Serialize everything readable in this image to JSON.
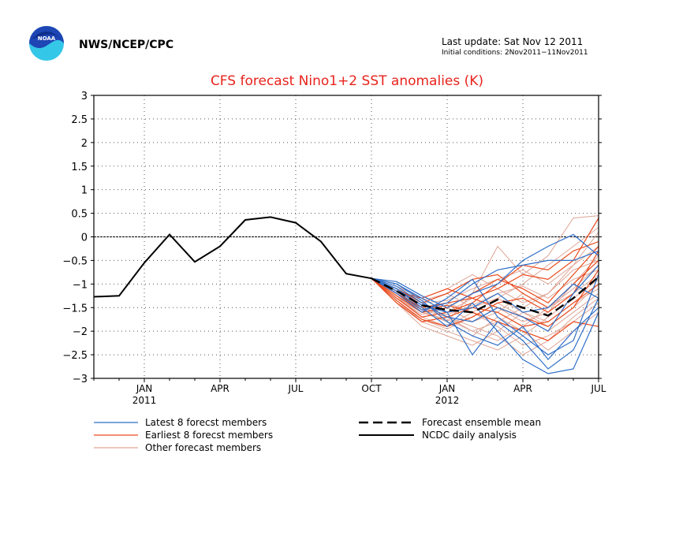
{
  "header": {
    "agency": "NWS/NCEP/CPC",
    "logo_text": "NOAA",
    "last_update": "Last update: Sat Nov 12 2011",
    "initial_conditions": "Initial conditions: 2Nov2011−11Nov2011"
  },
  "colors": {
    "title": "#e8231c",
    "latest": "#2f6fc8",
    "earliest": "#ea4a1c",
    "other": "#dfa596",
    "analysis": "#000000",
    "logo_blue": "#1e46b4",
    "logo_cyan": "#35c7e8"
  },
  "chart_data": {
    "type": "line",
    "title": "CFS forecast Nino1+2 SST anomalies (K)",
    "ylim": [
      -3,
      3
    ],
    "yticks": [
      3,
      2.5,
      2,
      1.5,
      1,
      0.5,
      0,
      -0.5,
      -1,
      -1.5,
      -2,
      -2.5,
      -3
    ],
    "ytick_labels": [
      "3",
      "2.5",
      "2",
      "1.5",
      "1",
      "0.5",
      "0",
      "−0.5",
      "−1",
      "−1.5",
      "−2",
      "−2.5",
      "−3"
    ],
    "xlim": [
      "2010-11",
      "2012-07"
    ],
    "xticks": [
      {
        "month": "2011-01",
        "label": "JAN",
        "year": "2011"
      },
      {
        "month": "2011-04",
        "label": "APR",
        "year": ""
      },
      {
        "month": "2011-07",
        "label": "JUL",
        "year": ""
      },
      {
        "month": "2011-10",
        "label": "OCT",
        "year": ""
      },
      {
        "month": "2012-01",
        "label": "JAN",
        "year": "2012"
      },
      {
        "month": "2012-04",
        "label": "APR",
        "year": ""
      },
      {
        "month": "2012-07",
        "label": "JUL",
        "year": ""
      }
    ],
    "grid": true,
    "zero_line": true,
    "legend": {
      "placement": "bottom",
      "entries": [
        {
          "label": "Latest 8 forecst members",
          "style": "latest"
        },
        {
          "label": "Earliest 8 forecst members",
          "style": "earliest"
        },
        {
          "label": "Other forecast members",
          "style": "other"
        },
        {
          "label": "Forecast ensemble mean",
          "style": "mean"
        },
        {
          "label": "NCDC daily analysis",
          "style": "analysis"
        }
      ]
    },
    "series": [
      {
        "name": "NCDC daily analysis",
        "style": "analysis",
        "x": [
          "2010-11",
          "2010-12",
          "2011-01",
          "2011-02",
          "2011-03",
          "2011-04",
          "2011-05",
          "2011-06",
          "2011-07",
          "2011-08",
          "2011-09",
          "2011-10"
        ],
        "values": [
          -1.27,
          -1.25,
          -0.55,
          0.05,
          -0.53,
          -0.2,
          0.36,
          0.42,
          0.3,
          -0.1,
          -0.78,
          -0.88
        ]
      },
      {
        "name": "Forecast ensemble mean",
        "style": "mean",
        "x": [
          "2011-10",
          "2011-11",
          "2011-12",
          "2012-01",
          "2012-02",
          "2012-03",
          "2012-04",
          "2012-05",
          "2012-06",
          "2012-07"
        ],
        "values": [
          -0.88,
          -1.15,
          -1.45,
          -1.55,
          -1.6,
          -1.33,
          -1.5,
          -1.67,
          -1.3,
          -0.85
        ]
      },
      {
        "name": "Latest 8 forecst members",
        "style": "latest",
        "x_start": "2011-10",
        "members": [
          [
            -0.88,
            -1.0,
            -1.3,
            -1.6,
            -2.5,
            -1.8,
            -2.2,
            -2.8,
            -2.4,
            -1.3
          ],
          [
            -0.88,
            -1.1,
            -1.5,
            -1.9,
            -1.4,
            -2.0,
            -2.6,
            -2.9,
            -2.8,
            -1.6
          ],
          [
            -0.88,
            -1.2,
            -1.6,
            -1.3,
            -0.9,
            -1.7,
            -2.1,
            -2.5,
            -2.2,
            -0.8
          ],
          [
            -0.88,
            -0.95,
            -1.25,
            -1.5,
            -1.2,
            -1.0,
            -0.5,
            -0.2,
            0.05,
            -0.4
          ],
          [
            -0.88,
            -1.05,
            -1.4,
            -1.7,
            -1.8,
            -1.5,
            -1.7,
            -2.0,
            -1.2,
            -0.6
          ],
          [
            -0.88,
            -1.15,
            -1.55,
            -1.4,
            -1.0,
            -0.7,
            -0.6,
            -0.5,
            -0.5,
            -0.3
          ],
          [
            -0.88,
            -1.0,
            -1.35,
            -1.8,
            -2.1,
            -2.3,
            -1.9,
            -2.6,
            -2.0,
            -1.5
          ],
          [
            -0.88,
            -1.1,
            -1.45,
            -1.6,
            -1.5,
            -1.2,
            -1.6,
            -1.5,
            -1.0,
            -1.3
          ]
        ]
      },
      {
        "name": "Earliest 8 forecst members",
        "style": "earliest",
        "x_start": "2011-10",
        "members": [
          [
            -0.88,
            -1.2,
            -1.5,
            -1.4,
            -1.3,
            -1.1,
            -0.8,
            -0.9,
            -0.5,
            0.4
          ],
          [
            -0.88,
            -1.3,
            -1.7,
            -1.6,
            -1.4,
            -1.0,
            -0.6,
            -0.7,
            -0.3,
            -0.1
          ],
          [
            -0.88,
            -1.1,
            -1.4,
            -1.2,
            -0.9,
            -0.8,
            -1.2,
            -1.5,
            -1.0,
            -0.5
          ],
          [
            -0.88,
            -1.4,
            -1.8,
            -1.7,
            -1.5,
            -1.6,
            -1.9,
            -1.8,
            -1.4,
            -1.0
          ],
          [
            -0.88,
            -1.25,
            -1.6,
            -1.5,
            -1.2,
            -0.9,
            -1.1,
            -1.4,
            -0.8,
            -0.2
          ],
          [
            -0.88,
            -1.15,
            -1.3,
            -1.1,
            -1.3,
            -1.5,
            -1.7,
            -1.9,
            -1.5,
            -0.7
          ],
          [
            -0.88,
            -1.35,
            -1.75,
            -1.9,
            -1.7,
            -1.4,
            -1.3,
            -1.6,
            -1.2,
            -0.3
          ],
          [
            -0.88,
            -1.2,
            -1.55,
            -1.45,
            -1.6,
            -1.8,
            -2.0,
            -2.2,
            -1.8,
            -1.9
          ]
        ]
      },
      {
        "name": "Other forecast members",
        "style": "other",
        "x_start": "2011-10",
        "members": [
          [
            -0.88,
            -1.3,
            -1.6,
            -1.8,
            -1.2,
            -0.2,
            -0.8,
            -0.4,
            0.4,
            0.45
          ],
          [
            -0.88,
            -1.2,
            -1.5,
            -1.7,
            -2.0,
            -1.8,
            -1.5,
            -1.2,
            -0.6,
            0.1
          ],
          [
            -0.88,
            -1.4,
            -1.9,
            -2.1,
            -2.3,
            -2.0,
            -1.6,
            -1.9,
            -1.5,
            -1.0
          ],
          [
            -0.88,
            -1.1,
            -1.35,
            -1.2,
            -1.5,
            -1.3,
            -1.0,
            -0.6,
            -0.2,
            0.2
          ],
          [
            -0.88,
            -1.25,
            -1.7,
            -1.9,
            -1.6,
            -1.9,
            -2.3,
            -2.1,
            -1.8,
            -1.4
          ],
          [
            -0.88,
            -1.35,
            -1.8,
            -2.0,
            -2.2,
            -2.4,
            -2.1,
            -1.7,
            -1.3,
            -0.9
          ],
          [
            -0.88,
            -1.05,
            -1.3,
            -1.1,
            -0.8,
            -1.1,
            -1.4,
            -1.2,
            -0.7,
            -0.5
          ],
          [
            -0.88,
            -1.3,
            -1.65,
            -1.5,
            -1.8,
            -1.6,
            -1.2,
            -1.5,
            -1.1,
            -0.6
          ],
          [
            -0.88,
            -1.2,
            -1.55,
            -1.8,
            -2.1,
            -1.7,
            -2.0,
            -2.4,
            -2.0,
            -1.6
          ],
          [
            -0.88,
            -1.15,
            -1.45,
            -1.6,
            -1.3,
            -1.5,
            -1.8,
            -1.6,
            -1.0,
            -0.4
          ],
          [
            -0.88,
            -1.4,
            -1.75,
            -1.95,
            -1.7,
            -1.4,
            -1.7,
            -2.0,
            -1.6,
            -1.2
          ],
          [
            -0.88,
            -1.1,
            -1.4,
            -1.35,
            -1.1,
            -0.9,
            -0.7,
            -1.0,
            -0.6,
            -0.2
          ],
          [
            -0.88,
            -1.3,
            -1.6,
            -1.75,
            -2.0,
            -2.2,
            -1.9,
            -1.5,
            -1.2,
            -0.8
          ],
          [
            -0.88,
            -1.2,
            -1.5,
            -1.4,
            -1.6,
            -1.3,
            -1.6,
            -1.8,
            -1.4,
            -1.1
          ],
          [
            -0.88,
            -1.25,
            -1.55,
            -1.7,
            -1.9,
            -2.1,
            -2.5,
            -2.2,
            -1.7,
            -1.3
          ],
          [
            -0.88,
            -1.15,
            -1.5,
            -1.65,
            -1.45,
            -1.2,
            -1.05,
            -1.3,
            -0.9,
            -0.7
          ]
        ]
      }
    ]
  }
}
